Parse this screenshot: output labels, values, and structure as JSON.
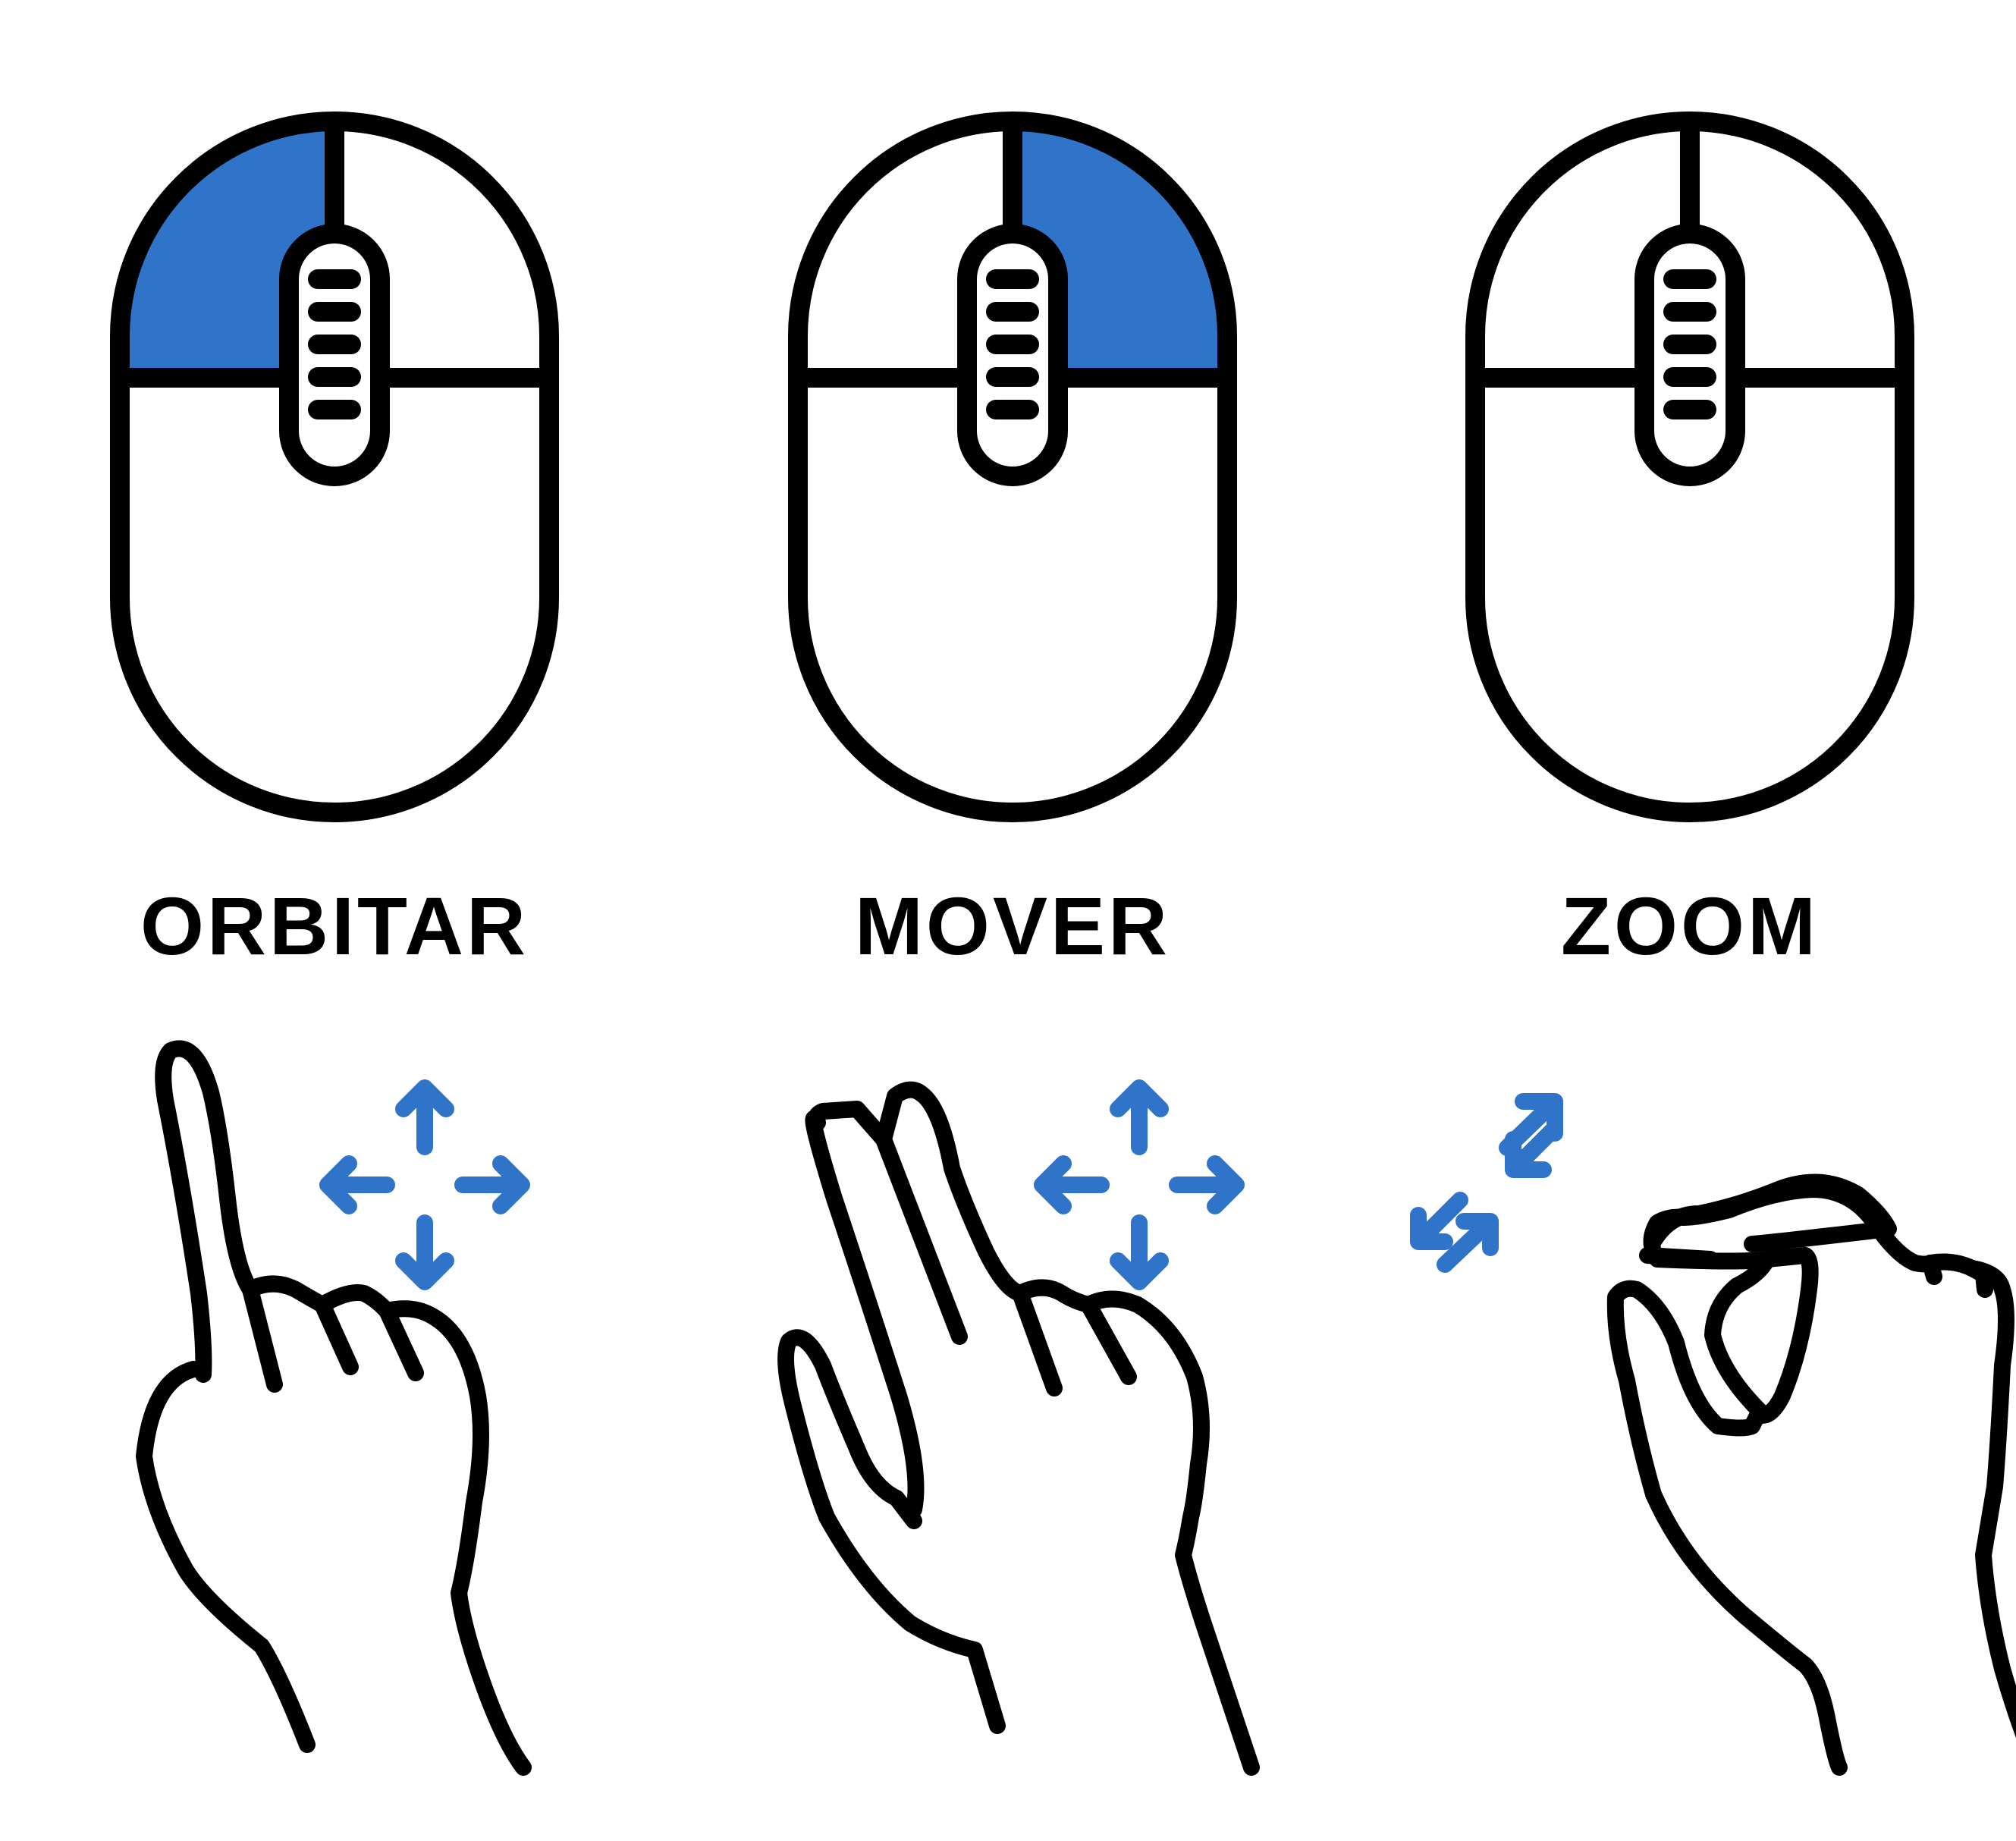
{
  "colors": {
    "accent": "#2f74c8",
    "stroke": "#000000",
    "background": "#ffffff"
  },
  "panels": [
    {
      "label": "ORBITAR",
      "highlighted_button": "left",
      "mouse_icon": "mouse-left-click-icon",
      "hand_icon": "one-finger-drag-icon",
      "arrows_icon": "four-way-move-arrows-icon"
    },
    {
      "label": "MOVER",
      "highlighted_button": "right",
      "mouse_icon": "mouse-right-click-icon",
      "hand_icon": "two-finger-drag-icon",
      "arrows_icon": "four-way-move-arrows-icon"
    },
    {
      "label": "ZOOM",
      "highlighted_button": "wheel",
      "mouse_icon": "mouse-scroll-wheel-icon",
      "hand_icon": "pinch-gesture-icon",
      "arrows_icon": "pinch-zoom-arrows-icon"
    }
  ]
}
